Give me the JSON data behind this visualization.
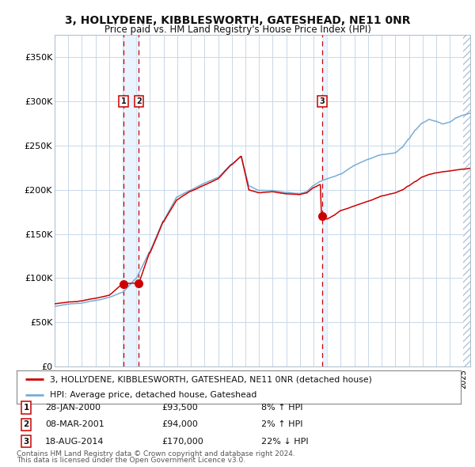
{
  "title": "3, HOLLYDENE, KIBBLESWORTH, GATESHEAD, NE11 0NR",
  "subtitle": "Price paid vs. HM Land Registry's House Price Index (HPI)",
  "ylim": [
    0,
    375000
  ],
  "xlim_start": 1995.0,
  "xlim_end": 2025.5,
  "yticks": [
    0,
    50000,
    100000,
    150000,
    200000,
    250000,
    300000,
    350000
  ],
  "ytick_labels": [
    "£0",
    "£50K",
    "£100K",
    "£150K",
    "£200K",
    "£250K",
    "£300K",
    "£350K"
  ],
  "hpi_color": "#7aadd4",
  "price_color": "#cc0000",
  "vline_color": "#cc0000",
  "vspan_color": "#ddeeff",
  "background_color": "#ffffff",
  "grid_color": "#c8d8e8",
  "legend_line1": "3, HOLLYDENE, KIBBLESWORTH, GATESHEAD, NE11 0NR (detached house)",
  "legend_line2": "HPI: Average price, detached house, Gateshead",
  "transactions": [
    {
      "label": "1",
      "date_str": "28-JAN-2000",
      "date_num": 2000.07,
      "price": 93500,
      "hpi_pct": "8%",
      "hpi_dir": "↑"
    },
    {
      "label": "2",
      "date_str": "08-MAR-2001",
      "date_num": 2001.18,
      "price": 94000,
      "hpi_pct": "2%",
      "hpi_dir": "↑"
    },
    {
      "label": "3",
      "date_str": "18-AUG-2014",
      "date_num": 2014.63,
      "price": 170000,
      "hpi_pct": "22%",
      "hpi_dir": "↓"
    }
  ],
  "footer1": "Contains HM Land Registry data © Crown copyright and database right 2024.",
  "footer2": "This data is licensed under the Open Government Licence v3.0."
}
